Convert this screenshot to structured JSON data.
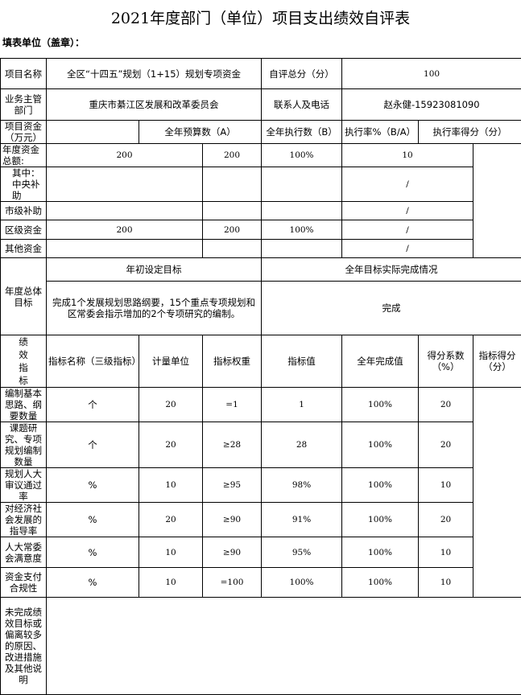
{
  "title": "2021年度部门（单位）项目支出绩效自评表",
  "unit_label": "填表单位（盖章）：",
  "project": {
    "name_label": "项目名称",
    "name": "全区“十四五”规划（1+15）规划专项资金",
    "score_label": "自评总分（分）",
    "score": "100",
    "dept_label": "业务主管部门",
    "dept": "重庆市綦江区发展和改革委员会",
    "contact_label": "联系人及电话",
    "contact": "赵永健-15923081090"
  },
  "funds": {
    "label": "项目资金（万元）",
    "headers": [
      "全年预算数（A）",
      "全年执行数（B）",
      "执行率%（B/A）",
      "执行率得分（分）"
    ],
    "rows": [
      {
        "name": "年度资金总额:",
        "a": "200",
        "b": "200",
        "rate": "100%",
        "score": "10"
      },
      {
        "name": "其中：中央补助",
        "a": "",
        "b": "",
        "rate": "",
        "score": "/"
      },
      {
        "name": "市级补助",
        "a": "",
        "b": "",
        "rate": "",
        "score": "/"
      },
      {
        "name": "区级资金",
        "a": "200",
        "b": "200",
        "rate": "100%",
        "score": "/"
      },
      {
        "name": "其他资金",
        "a": "",
        "b": "",
        "rate": "",
        "score": "/"
      }
    ]
  },
  "goals": {
    "label": "年度总体目标",
    "set_label": "年初设定目标",
    "actual_label": "全年目标实际完成情况",
    "set": "完成1个发展规划思路纲要，15个重点专项规划和区常委会指示增加的2个专项研究的编制。",
    "actual": "完成"
  },
  "indicators": {
    "label": "绩效指标",
    "headers": [
      "指标名称（三级指标）",
      "计量单位",
      "指标权重",
      "指标值",
      "全年完成值",
      "得分系数（%）",
      "指标得分（分）"
    ],
    "rows": [
      [
        "编制基本思路、纲要数量",
        "个",
        "20",
        "=1",
        "1",
        "100%",
        "20"
      ],
      [
        "课题研究、专项规划编制数量",
        "个",
        "20",
        "≥28",
        "28",
        "100%",
        "20"
      ],
      [
        "规划人大审议通过率",
        "%",
        "10",
        "≥95",
        "98%",
        "100%",
        "10"
      ],
      [
        "对经济社会发展的指导率",
        "%",
        "20",
        "≥90",
        "91%",
        "100%",
        "20"
      ],
      [
        "人大常委会满意度",
        "%",
        "10",
        "≥90",
        "95%",
        "100%",
        "10"
      ],
      [
        "资金支付合规性",
        "%",
        "10",
        "=100",
        "100%",
        "100%",
        "10"
      ]
    ]
  },
  "remarks": {
    "label": "未完成绩效目标或偏离较多的原因、改进措施及其他说明",
    "value": ""
  }
}
